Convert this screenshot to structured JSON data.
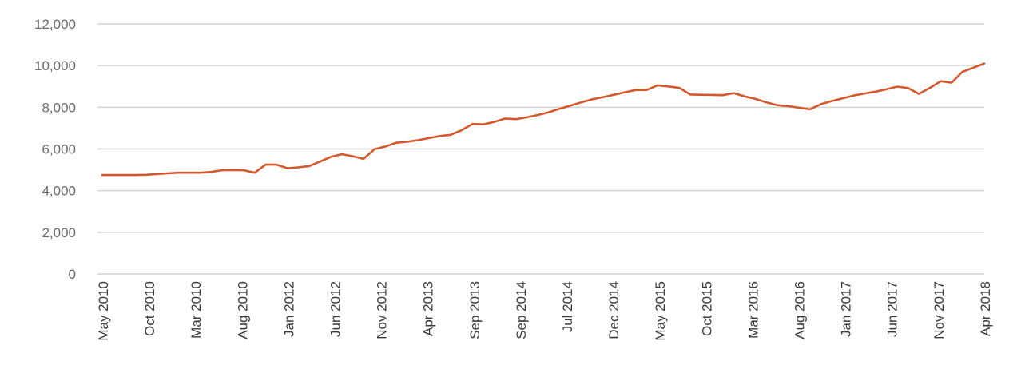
{
  "chart_data": {
    "type": "line",
    "title": "",
    "xlabel": "",
    "ylabel": "",
    "ylim": [
      0,
      12000
    ],
    "grid": true,
    "legend": "none",
    "line_color": "#d4582b",
    "grid_color": "#d4d4d4",
    "y_ticks": [
      "0",
      "2,000",
      "4,000",
      "6,000",
      "8,000",
      "10,000",
      "12,000"
    ],
    "y_tick_values": [
      0,
      2000,
      4000,
      6000,
      8000,
      10000,
      12000
    ],
    "x_tick_labels": [
      "May 2010",
      "Oct 2010",
      "Mar 2010",
      "Aug 2010",
      "Jan 2012",
      "Jun 2012",
      "Nov 2012",
      "Apr 2013",
      "Sep 2013",
      "Sep 2014",
      "Jul 2014",
      "Dec 2014",
      "May 2015",
      "Oct 2015",
      "Mar 2016",
      "Aug 2016",
      "Jan 2017",
      "Jun 2017",
      "Nov 2017",
      "Apr 2018"
    ],
    "series": [
      {
        "values": [
          4750,
          4750,
          4750,
          4750,
          4760,
          4800,
          4830,
          4860,
          4860,
          4860,
          4900,
          4980,
          4990,
          4980,
          4860,
          5250,
          5250,
          5080,
          5120,
          5180,
          5400,
          5620,
          5750,
          5650,
          5530,
          5990,
          6120,
          6300,
          6350,
          6420,
          6520,
          6620,
          6680,
          6900,
          7200,
          7180,
          7300,
          7460,
          7430,
          7520,
          7630,
          7760,
          7930,
          8080,
          8240,
          8380,
          8490,
          8600,
          8720,
          8830,
          8830,
          9050,
          9000,
          8930,
          8610,
          8600,
          8590,
          8580,
          8680,
          8520,
          8400,
          8230,
          8100,
          8050,
          7980,
          7900,
          8150,
          8300,
          8430,
          8560,
          8660,
          8750,
          8860,
          8990,
          8920,
          8640,
          8930,
          9250,
          9180,
          9700,
          9900,
          10100
        ]
      }
    ]
  }
}
